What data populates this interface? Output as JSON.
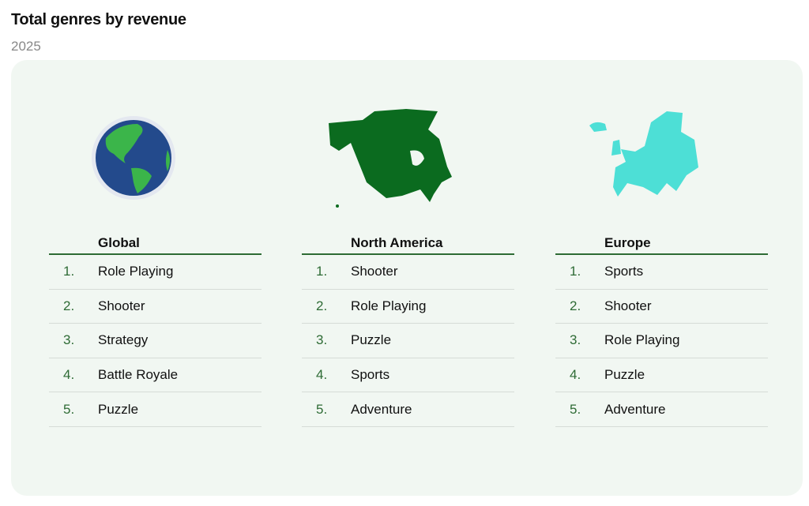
{
  "title": "Total genres by revenue",
  "subtitle": "2025",
  "colors": {
    "accent": "#2e6b35",
    "card_bg": "#f1f7f2",
    "globe_ocean": "#234a8c",
    "globe_land": "#3bb54a",
    "north_america": "#0b6b1f",
    "europe": "#4ddfd6"
  },
  "regions": [
    {
      "name": "Global",
      "icon": "globe-icon",
      "items": [
        {
          "rank": "1.",
          "genre": "Role Playing"
        },
        {
          "rank": "2.",
          "genre": "Shooter"
        },
        {
          "rank": "3.",
          "genre": "Strategy"
        },
        {
          "rank": "4.",
          "genre": "Battle Royale"
        },
        {
          "rank": "5.",
          "genre": "Puzzle"
        }
      ]
    },
    {
      "name": "North America",
      "icon": "north-america-map-icon",
      "items": [
        {
          "rank": "1.",
          "genre": "Shooter"
        },
        {
          "rank": "2.",
          "genre": "Role Playing"
        },
        {
          "rank": "3.",
          "genre": "Puzzle"
        },
        {
          "rank": "4.",
          "genre": "Sports"
        },
        {
          "rank": "5.",
          "genre": "Adventure"
        }
      ]
    },
    {
      "name": "Europe",
      "icon": "europe-map-icon",
      "items": [
        {
          "rank": "1.",
          "genre": "Sports"
        },
        {
          "rank": "2.",
          "genre": "Shooter"
        },
        {
          "rank": "3.",
          "genre": "Role Playing"
        },
        {
          "rank": "4.",
          "genre": "Puzzle"
        },
        {
          "rank": "5.",
          "genre": "Adventure"
        }
      ]
    }
  ]
}
